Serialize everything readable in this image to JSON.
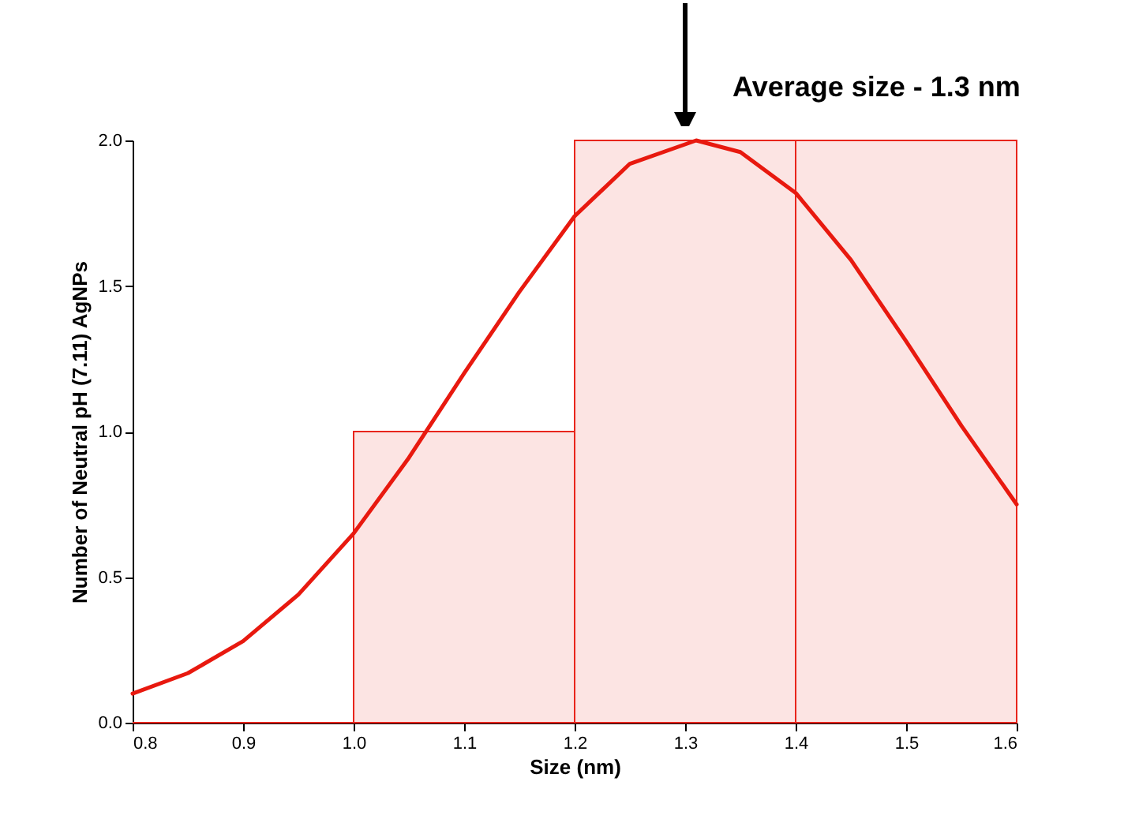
{
  "chart_data": {
    "type": "histogram",
    "xlabel": "Size (nm)",
    "ylabel": "Number of Neutral pH (7.11) AgNPs",
    "bins": [
      0.8,
      1.0,
      1.2,
      1.4,
      1.6
    ],
    "values": [
      0,
      1,
      2,
      2
    ],
    "color": "#e8251c",
    "series": [
      {
        "type": "line",
        "color": "#e8190f",
        "x": [
          0.8,
          0.85,
          0.9,
          0.95,
          1.0,
          1.05,
          1.1,
          1.15,
          1.2,
          1.25,
          1.31,
          1.35,
          1.4,
          1.45,
          1.5,
          1.55,
          1.6
        ],
        "values": [
          0.1,
          0.17,
          0.28,
          0.44,
          0.65,
          0.91,
          1.2,
          1.48,
          1.74,
          1.92,
          2.0,
          1.96,
          1.82,
          1.59,
          1.31,
          1.02,
          0.75
        ]
      }
    ],
    "xlim": [
      0.8,
      1.6
    ],
    "xticks": [
      0.8,
      0.9,
      {
        "value": 1,
        "label": "1.0"
      },
      1.1,
      1.2,
      1.3,
      1.4,
      1.5,
      1.6
    ],
    "ylim": [
      0,
      2
    ],
    "yticks": [
      {
        "value": 0,
        "label": "0.0"
      },
      0.5,
      {
        "value": 1,
        "label": "1.0"
      },
      1.5,
      {
        "value": 2,
        "label": "2.0"
      }
    ],
    "annotations": [
      {
        "text": "Average size - 1.3 nm",
        "x": 1.3,
        "y": 2.0
      }
    ],
    "grid": false,
    "marker": "none",
    "line_style": "solid"
  }
}
